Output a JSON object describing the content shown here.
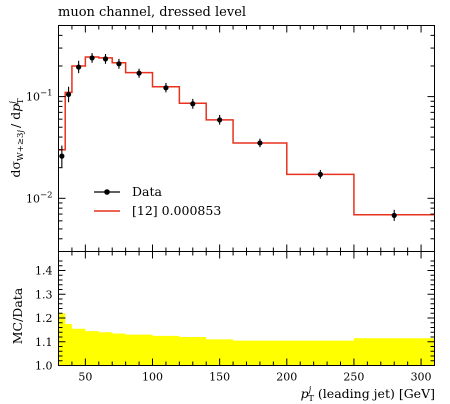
{
  "chart_data": {
    "type": "line",
    "title": "muon channel, dressed level",
    "xlabel": {
      "main": "p",
      "sup": "j",
      "sub": "T",
      "rest": " (leading jet) [GeV]"
    },
    "xlim": [
      30,
      310
    ],
    "x_ticks": [
      50,
      100,
      150,
      200,
      250,
      300
    ],
    "x_tick_labels": [
      "50",
      "100",
      "150",
      "200",
      "250",
      "300"
    ],
    "main_panel": {
      "ylabel": {
        "main": "dσ",
        "sub1": "W+≥3",
        "sub1_j": "j",
        "mid": "/ d",
        "p": "p",
        "sup": "j",
        "sub2": "T"
      },
      "yscale": "log",
      "ylim": [
        0.003,
        0.5
      ],
      "y_major_ticks": [
        0.01,
        0.1
      ],
      "y_tick_labels": [
        {
          "base": "10",
          "exp": "−2"
        },
        {
          "base": "10",
          "exp": "−1"
        }
      ],
      "legend_position": "lower-left",
      "series": [
        {
          "name": "Data",
          "style": "points-with-errors",
          "color": "#000000",
          "points": [
            {
              "x": 32.5,
              "y": 0.026,
              "ylo": 0.02,
              "yhi": 0.033
            },
            {
              "x": 37.5,
              "y": 0.105,
              "ylo": 0.088,
              "yhi": 0.125
            },
            {
              "x": 45,
              "y": 0.195,
              "ylo": 0.17,
              "yhi": 0.225
            },
            {
              "x": 55,
              "y": 0.24,
              "ylo": 0.215,
              "yhi": 0.268
            },
            {
              "x": 65,
              "y": 0.235,
              "ylo": 0.21,
              "yhi": 0.262
            },
            {
              "x": 75,
              "y": 0.21,
              "ylo": 0.188,
              "yhi": 0.235
            },
            {
              "x": 90,
              "y": 0.17,
              "ylo": 0.153,
              "yhi": 0.188
            },
            {
              "x": 110,
              "y": 0.122,
              "ylo": 0.11,
              "yhi": 0.136
            },
            {
              "x": 130,
              "y": 0.085,
              "ylo": 0.076,
              "yhi": 0.095
            },
            {
              "x": 150,
              "y": 0.059,
              "ylo": 0.053,
              "yhi": 0.066
            },
            {
              "x": 180,
              "y": 0.035,
              "ylo": 0.0318,
              "yhi": 0.0386
            },
            {
              "x": 225,
              "y": 0.0172,
              "ylo": 0.0156,
              "yhi": 0.019
            },
            {
              "x": 280,
              "y": 0.0068,
              "ylo": 0.006,
              "yhi": 0.0077
            }
          ]
        },
        {
          "name": "[12] 0.000853",
          "style": "step-histogram",
          "color": "#e8321e",
          "bin_edges": [
            30,
            35,
            40,
            50,
            60,
            70,
            80,
            100,
            120,
            140,
            160,
            200,
            250,
            310
          ],
          "values": [
            0.03,
            0.11,
            0.2,
            0.245,
            0.24,
            0.215,
            0.172,
            0.125,
            0.086,
            0.059,
            0.035,
            0.0172,
            0.0069
          ]
        }
      ]
    },
    "ratio_panel": {
      "ylabel": "MC/Data",
      "ylim": [
        1.0,
        1.48
      ],
      "y_ticks": [
        1.0,
        1.1,
        1.2,
        1.3,
        1.4
      ],
      "y_tick_labels": [
        "1.0",
        "1.1",
        "1.2",
        "1.3",
        "1.4"
      ],
      "band_color": "#ffff00",
      "bin_edges": [
        30,
        35,
        40,
        50,
        60,
        70,
        80,
        100,
        120,
        140,
        160,
        200,
        250,
        310
      ],
      "band_upper": [
        1.22,
        1.175,
        1.155,
        1.145,
        1.14,
        1.135,
        1.13,
        1.125,
        1.12,
        1.11,
        1.105,
        1.105,
        1.115
      ]
    }
  }
}
